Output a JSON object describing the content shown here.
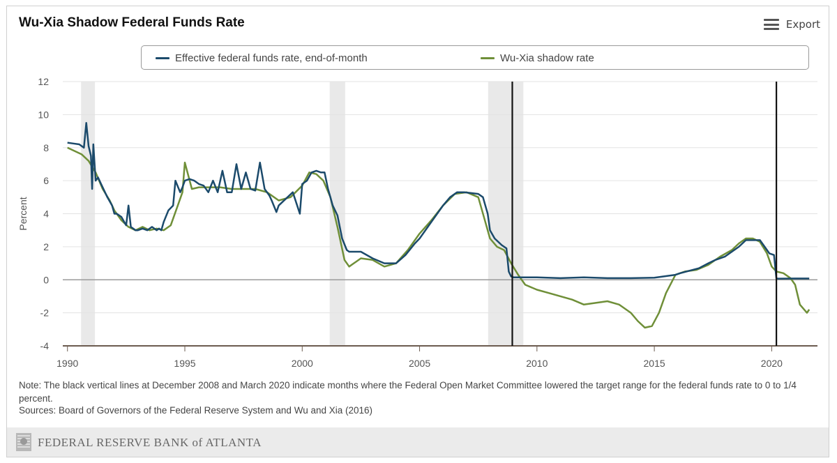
{
  "title": "Wu-Xia Shadow Federal Funds Rate",
  "export_label": "Export",
  "legend": [
    {
      "label": "Effective federal funds rate, end-of-month",
      "color": "#1b4a6b"
    },
    {
      "label": "Wu-Xia shadow rate",
      "color": "#6f8f38"
    }
  ],
  "note": "Note: The black vertical lines at December 2008 and March 2020 indicate months where the Federal Open Market Committee lowered the target range for the federal funds rate to 0 to 1/4 percent.",
  "sources": "Sources: Board of Governors of the Federal Reserve System and Wu and Xia (2016)",
  "footer": {
    "bank": "FEDERAL RESERVE BANK of ATLANTA"
  },
  "chart_data": {
    "type": "line",
    "ylabel": "Percent",
    "xlim": [
      1989.8,
      2021.95
    ],
    "ylim": [
      -4,
      12
    ],
    "yticks": [
      12,
      10,
      8,
      6,
      4,
      2,
      0,
      -2,
      -4
    ],
    "xticks": [
      1990,
      1995,
      2000,
      2005,
      2010,
      2015,
      2020
    ],
    "recessions": [
      [
        1990.58,
        1991.17
      ],
      [
        2001.17,
        2001.83
      ],
      [
        2007.92,
        2009.42
      ]
    ],
    "vlines": [
      2008.95,
      2020.2
    ],
    "series": [
      {
        "name": "Effective federal funds rate, end-of-month",
        "color": "#1b4a6b",
        "x": [
          1990.0,
          1990.25,
          1990.5,
          1990.7,
          1990.8,
          1990.9,
          1991.0,
          1991.05,
          1991.1,
          1991.2,
          1991.3,
          1991.5,
          1991.7,
          1991.9,
          1992.0,
          1992.1,
          1992.3,
          1992.5,
          1992.6,
          1992.7,
          1992.9,
          1993.0,
          1993.2,
          1993.4,
          1993.6,
          1993.8,
          1993.9,
          1994.0,
          1994.1,
          1994.3,
          1994.5,
          1994.6,
          1994.8,
          1994.9,
          1995.0,
          1995.2,
          1995.4,
          1995.6,
          1995.8,
          1996.0,
          1996.2,
          1996.4,
          1996.6,
          1996.8,
          1997.0,
          1997.2,
          1997.4,
          1997.6,
          1997.8,
          1998.0,
          1998.2,
          1998.4,
          1998.6,
          1998.7,
          1998.9,
          1999.0,
          1999.3,
          1999.6,
          1999.9,
          2000.0,
          2000.2,
          2000.4,
          2000.6,
          2000.8,
          2000.95,
          2001.1,
          2001.3,
          2001.5,
          2001.7,
          2001.9,
          2002.0,
          2002.5,
          2003.0,
          2003.5,
          2004.0,
          2004.4,
          2004.8,
          2005.0,
          2005.5,
          2006.0,
          2006.3,
          2006.6,
          2006.9,
          2007.2,
          2007.5,
          2007.7,
          2007.9,
          2008.0,
          2008.2,
          2008.5,
          2008.7,
          2008.8,
          2008.9,
          2009.0,
          2009.5,
          2010.0,
          2011.0,
          2012.0,
          2013.0,
          2014.0,
          2015.0,
          2015.9,
          2016.1,
          2016.9,
          2017.3,
          2017.6,
          2018.0,
          2018.3,
          2018.6,
          2018.9,
          2019.2,
          2019.5,
          2019.7,
          2019.9,
          2020.1,
          2020.2,
          2020.3,
          2021.0,
          2021.6
        ],
        "y": [
          8.3,
          8.25,
          8.2,
          8.0,
          9.5,
          8.1,
          7.5,
          5.5,
          8.2,
          6.0,
          6.2,
          5.6,
          5.0,
          4.5,
          4.0,
          4.0,
          3.8,
          3.3,
          4.5,
          3.2,
          3.0,
          3.0,
          3.1,
          3.0,
          3.2,
          3.0,
          3.1,
          3.0,
          3.5,
          4.2,
          4.5,
          6.0,
          5.3,
          5.6,
          6.0,
          6.1,
          6.0,
          5.8,
          5.7,
          5.3,
          6.0,
          5.3,
          6.6,
          5.3,
          5.3,
          7.0,
          5.5,
          6.5,
          5.5,
          5.4,
          7.1,
          5.5,
          5.1,
          4.8,
          4.1,
          4.5,
          4.9,
          5.3,
          4.0,
          5.8,
          6.0,
          6.5,
          6.6,
          6.5,
          6.5,
          5.5,
          4.5,
          3.9,
          2.5,
          1.8,
          1.7,
          1.7,
          1.3,
          1.0,
          1.0,
          1.5,
          2.2,
          2.5,
          3.5,
          4.5,
          5.0,
          5.3,
          5.3,
          5.25,
          5.2,
          5.0,
          4.0,
          3.0,
          2.5,
          2.1,
          1.9,
          0.5,
          0.2,
          0.15,
          0.15,
          0.15,
          0.1,
          0.15,
          0.1,
          0.1,
          0.13,
          0.3,
          0.4,
          0.7,
          1.0,
          1.2,
          1.4,
          1.7,
          2.0,
          2.4,
          2.4,
          2.4,
          2.0,
          1.6,
          1.5,
          0.08,
          0.07,
          0.08,
          0.08
        ]
      },
      {
        "name": "Wu-Xia shadow rate",
        "color": "#6f8f38",
        "x": [
          1990.0,
          1990.3,
          1990.6,
          1990.9,
          1991.2,
          1991.5,
          1991.8,
          1992.0,
          1992.3,
          1992.6,
          1992.9,
          1993.2,
          1993.5,
          1993.8,
          1994.1,
          1994.4,
          1994.7,
          1994.9,
          1995.0,
          1995.3,
          1995.6,
          1996.0,
          1996.5,
          1997.0,
          1997.5,
          1998.0,
          1998.5,
          1999.0,
          1999.5,
          2000.0,
          2000.3,
          2000.6,
          2000.9,
          2001.2,
          2001.5,
          2001.8,
          2002.0,
          2002.5,
          2003.0,
          2003.5,
          2004.0,
          2004.5,
          2005.0,
          2005.5,
          2006.0,
          2006.5,
          2007.0,
          2007.5,
          2007.8,
          2008.0,
          2008.3,
          2008.6,
          2008.9,
          2009.2,
          2009.5,
          2010.0,
          2010.5,
          2011.0,
          2011.5,
          2012.0,
          2012.5,
          2013.0,
          2013.5,
          2014.0,
          2014.3,
          2014.6,
          2014.9,
          2015.2,
          2015.5,
          2015.9,
          2016.3,
          2016.8,
          2017.3,
          2017.8,
          2018.3,
          2018.6,
          2018.9,
          2019.2,
          2019.5,
          2019.8,
          2020.0,
          2020.2,
          2020.5,
          2020.8,
          2021.0,
          2021.2,
          2021.5,
          2021.6
        ],
        "y": [
          8.0,
          7.8,
          7.6,
          7.2,
          6.5,
          5.5,
          4.8,
          4.2,
          3.6,
          3.2,
          3.0,
          3.2,
          3.0,
          3.1,
          3.0,
          3.3,
          4.5,
          5.3,
          7.1,
          5.5,
          5.6,
          5.6,
          5.6,
          5.5,
          5.5,
          5.5,
          5.3,
          4.8,
          5.0,
          5.7,
          6.5,
          6.4,
          6.0,
          5.0,
          3.2,
          1.2,
          0.8,
          1.3,
          1.2,
          0.8,
          1.0,
          1.8,
          2.8,
          3.6,
          4.5,
          5.2,
          5.3,
          5.0,
          3.5,
          2.5,
          2.0,
          1.8,
          1.0,
          0.3,
          -0.3,
          -0.6,
          -0.8,
          -1.0,
          -1.2,
          -1.5,
          -1.4,
          -1.3,
          -1.5,
          -2.0,
          -2.5,
          -2.9,
          -2.8,
          -2.0,
          -0.8,
          0.3,
          0.5,
          0.6,
          0.9,
          1.4,
          1.8,
          2.2,
          2.5,
          2.5,
          2.3,
          1.6,
          0.8,
          0.5,
          0.4,
          0.1,
          -0.3,
          -1.5,
          -2.0,
          -1.8
        ]
      }
    ]
  }
}
